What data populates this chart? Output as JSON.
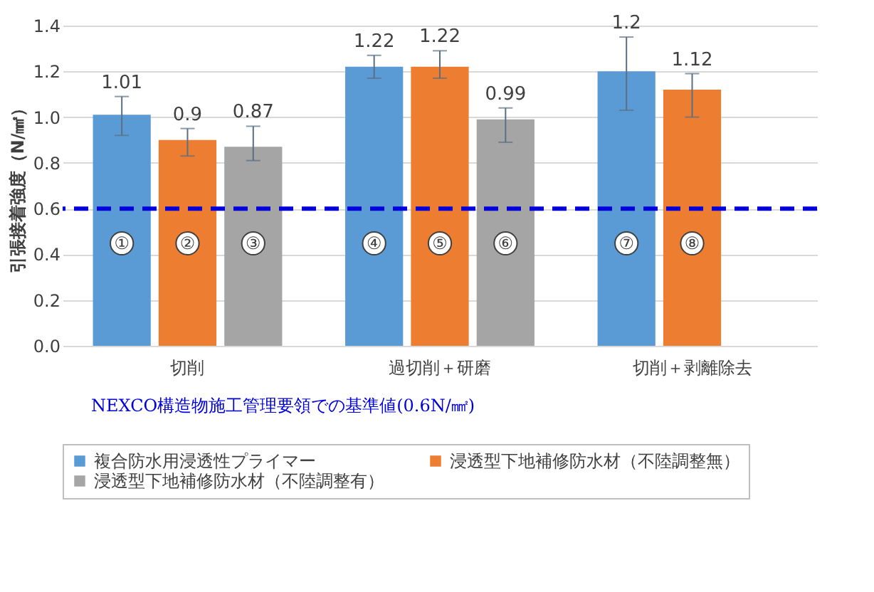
{
  "chart_data": {
    "type": "bar",
    "ylabel": "引張接着強度（N/㎟）",
    "categories": [
      "切削",
      "過切削＋研磨",
      "切削＋剥離除去"
    ],
    "series": [
      {
        "name": "複合防水用浸透性プライマー",
        "color": "#5b9bd5",
        "values": [
          1.01,
          1.22,
          1.2
        ],
        "errors": [
          [
            0.92,
            1.09
          ],
          [
            1.17,
            1.27
          ],
          [
            1.03,
            1.35
          ]
        ]
      },
      {
        "name": "浸透型下地補修防水材（不陸調整無）",
        "color": "#ed7d31",
        "values": [
          0.9,
          1.22,
          1.12
        ],
        "errors": [
          [
            0.83,
            0.95
          ],
          [
            1.17,
            1.29
          ],
          [
            1.0,
            1.19
          ]
        ]
      },
      {
        "name": "浸透型下地補修防水材（不陸調整有）",
        "color": "#a5a5a5",
        "values": [
          0.87,
          0.99,
          null
        ],
        "errors": [
          [
            0.81,
            0.96
          ],
          [
            0.89,
            1.04
          ],
          null
        ]
      }
    ],
    "ylim": [
      0,
      1.4
    ],
    "yticks": [
      {
        "value": 0,
        "label": "0.0"
      },
      0.2,
      0.4,
      0.6,
      0.8,
      {
        "value": 1,
        "label": "1.0"
      },
      1.2,
      1.4
    ],
    "grid": "y",
    "legend": "bottom",
    "data_labels": true,
    "ref_lines": [
      {
        "axis": "y",
        "value": 0.6,
        "label": "NEXCO構造物施工管理要領での基準値(0.6N/㎟)",
        "color": "#0000dd",
        "line_style": "dashed"
      }
    ],
    "annotations": [
      "①",
      "②",
      "③",
      "④",
      "⑤",
      "⑥",
      "⑦",
      "⑧"
    ]
  }
}
